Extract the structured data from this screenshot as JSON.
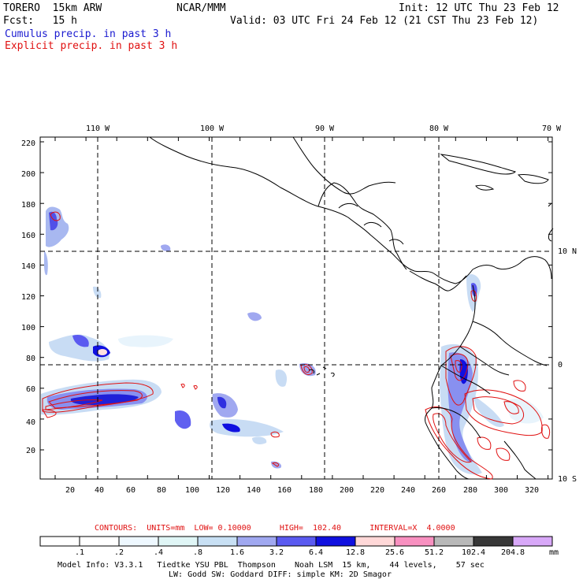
{
  "header": {
    "model": "TORERO  15km ARW",
    "center": "NCAR/MMM",
    "init": "Init: 12 UTC Thu 23 Feb 12",
    "fcst": "Fcst:   15 h",
    "valid": "Valid: 03 UTC Fri 24 Feb 12 (21 CST Thu 23 Feb 12)",
    "cumulus": "Cumulus precip. in past 3 h",
    "explicit": "Explicit precip. in past 3 h"
  },
  "map": {
    "lon_labels": [
      "110 W",
      "100 W",
      "90 W",
      "80 W",
      "70 W"
    ],
    "lat_labels": [
      "10 N",
      "0",
      "10 S"
    ],
    "y_ticks": [
      "20",
      "40",
      "60",
      "80",
      "100",
      "120",
      "140",
      "160",
      "180",
      "200",
      "220"
    ],
    "x_ticks": [
      "20",
      "40",
      "60",
      "80",
      "100",
      "120",
      "140",
      "160",
      "180",
      "200",
      "220",
      "240",
      "260",
      "280",
      "300",
      "320"
    ],
    "colors": {
      "cumulus": "#3a3ae0",
      "explicit": "#e01010",
      "coast": "#000000",
      "grid": "#000000"
    }
  },
  "contours_info": {
    "units": "CONTOURS:  UNITS=mm  LOW= 0.10000",
    "high": "HIGH=  102.40",
    "interval": "INTERVAL=X  4.0000"
  },
  "legend": {
    "unit": "mm",
    "labels": [
      ".1",
      ".2",
      ".4",
      ".8",
      "1.6",
      "3.2",
      "6.4",
      "12.8",
      "25.6",
      "51.2",
      "102.4",
      "204.8"
    ],
    "colors": [
      "#ffffff",
      "#ffffff",
      "#eef8ff",
      "#e0f6f6",
      "#c8e0f4",
      "#a0a8f0",
      "#5a5af0",
      "#1010e0",
      "#ffd8d8",
      "#f890c0",
      "#b8b8b8",
      "#383838",
      "#d8a8f8"
    ]
  },
  "footer": {
    "line1": "Model Info: V3.3.1   Tiedtke YSU PBL  Thompson    Noah LSM  15 km,    44 levels,    57 sec",
    "line2": "LW: Godd SW: Goddard DIFF: simple KM: 2D Smagor"
  }
}
